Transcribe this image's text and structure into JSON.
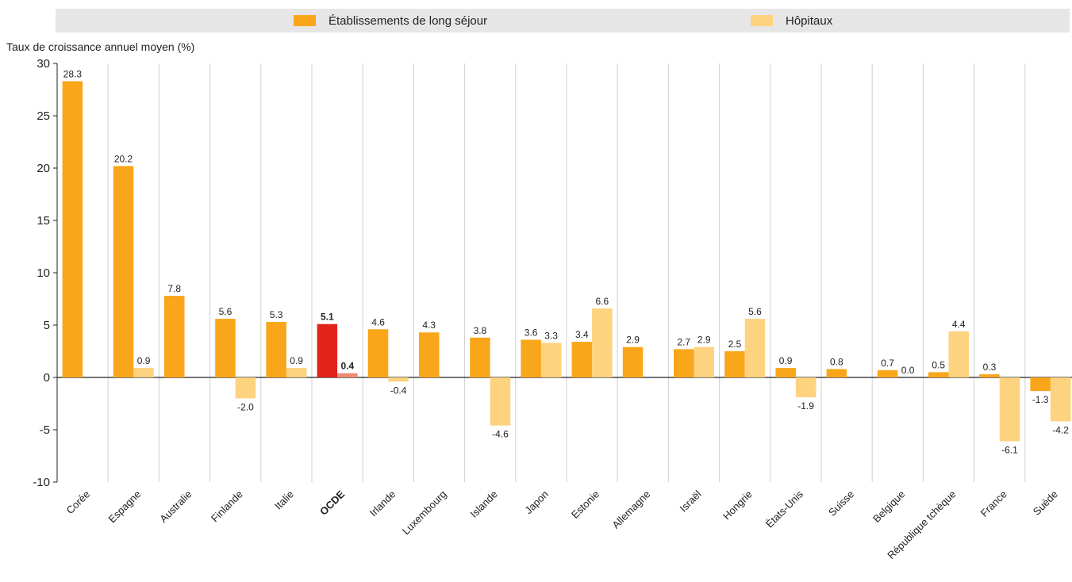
{
  "chart_data": {
    "type": "bar",
    "ylabel": "Taux de croissance annuel moyen (%)",
    "xlabel": "",
    "ylim": [
      -10,
      30
    ],
    "yticks": [
      -10,
      -5,
      0,
      5,
      10,
      15,
      20,
      25,
      30
    ],
    "grid": false,
    "legend_position": "top",
    "categories": [
      "Corée",
      "Espagne",
      "Australie",
      "Finlande",
      "Italie",
      "OCDE",
      "Irlande",
      "Luxembourg",
      "Islande",
      "Japon",
      "Estonie",
      "Allemagne",
      "Israël",
      "Hongrie",
      "États-Unis",
      "Suisse",
      "Belgique",
      "République tchèque",
      "France",
      "Suède"
    ],
    "highlight_category": "OCDE",
    "series": [
      {
        "name": "Établissements de long séjour",
        "color": "#f9a61a",
        "highlight_color": "#e2231a",
        "values": [
          28.3,
          20.2,
          7.8,
          5.6,
          5.3,
          5.1,
          4.6,
          4.3,
          3.8,
          3.6,
          3.4,
          2.9,
          2.7,
          2.5,
          0.9,
          0.8,
          0.7,
          0.5,
          0.3,
          -1.3
        ],
        "labels": [
          "28.3",
          "20.2",
          "7.8",
          "5.6",
          "5.3",
          "5.1",
          "4.6",
          "4.3",
          "3.8",
          "3.6",
          "3.4",
          "2.9",
          "2.7",
          "2.5",
          "0.9",
          "0.8",
          "0.7",
          "0.5",
          "0.3",
          "-1.3"
        ]
      },
      {
        "name": "Hôpitaux",
        "color": "#fdd37f",
        "highlight_color": "#f08a70",
        "values": [
          null,
          0.9,
          null,
          -2.0,
          0.9,
          0.4,
          -0.4,
          null,
          -4.6,
          3.3,
          6.6,
          null,
          2.9,
          5.6,
          -1.9,
          null,
          0.0,
          4.4,
          -6.1,
          -4.2
        ],
        "labels": [
          "",
          "0.9",
          "",
          "-2.0",
          "0.9",
          "0.4",
          "-0.4",
          "",
          "-4.6",
          "3.3",
          "6.6",
          "",
          "2.9",
          "5.6",
          "-1.9",
          "",
          "0.0",
          "4.4",
          "-6.1",
          "-4.2"
        ]
      }
    ]
  }
}
